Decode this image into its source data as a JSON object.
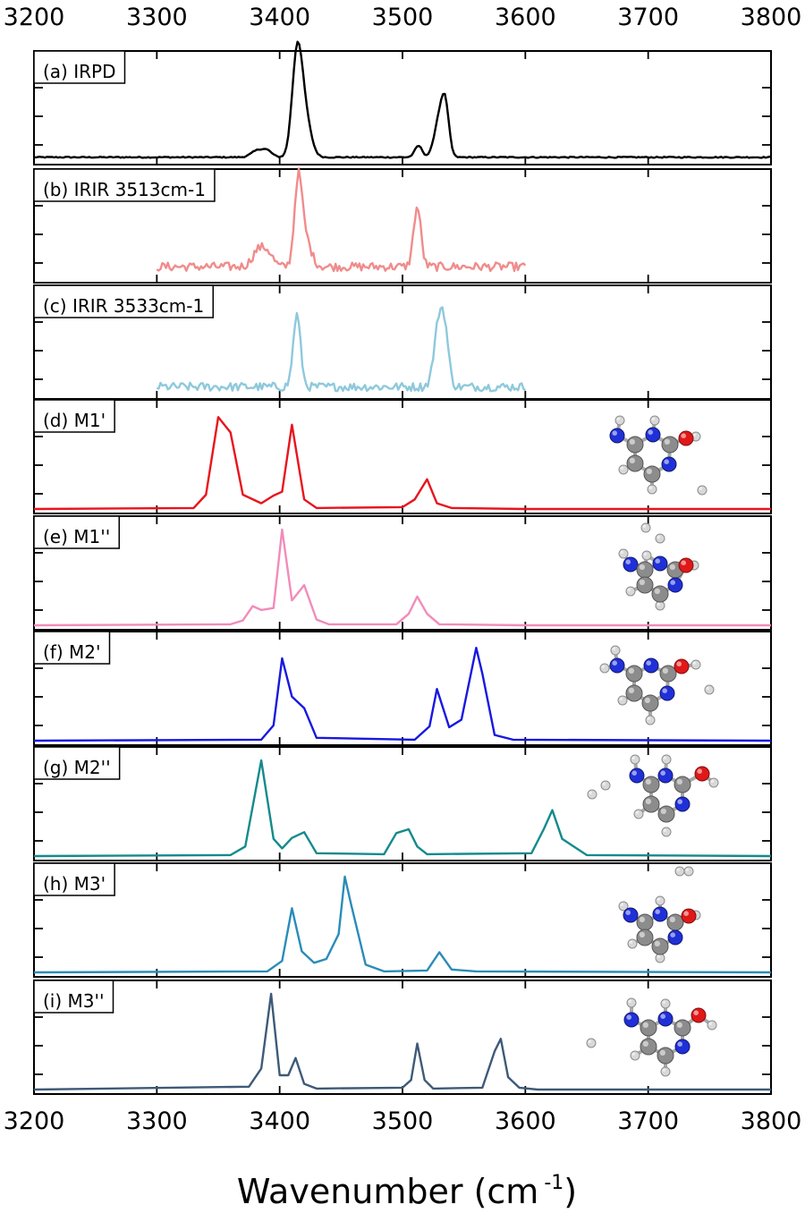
{
  "chart_data": {
    "type": "line",
    "xlabel": "Wavenumber (cm",
    "xlabel_superscript": "-1",
    "xlabel_close": ")",
    "xlim": [
      3200,
      3800
    ],
    "xticks": [
      3200,
      3300,
      3400,
      3500,
      3600,
      3700,
      3800
    ],
    "xtick_labels": [
      "3200",
      "3300",
      "3400",
      "3500",
      "3600",
      "3700",
      "3800"
    ],
    "grid": false,
    "panels": [
      {
        "label": "(a) IRPD",
        "color": "#000000",
        "kind": "measured",
        "range": [
          3200,
          3800
        ],
        "baseline": 0.03,
        "noise": 0.006,
        "peaks": [
          [
            3382,
            0.07,
            5
          ],
          [
            3390,
            0.06,
            4
          ],
          [
            3414,
            0.97,
            4
          ],
          [
            3420,
            0.45,
            5
          ],
          [
            3513,
            0.12,
            3
          ],
          [
            3530,
            0.4,
            4
          ],
          [
            3535,
            0.45,
            3
          ]
        ],
        "molecule": false
      },
      {
        "label": "(b) IRIR 3513cm-1",
        "color": "#f08c8c",
        "kind": "measured",
        "range": [
          3300,
          3600
        ],
        "baseline": 0.12,
        "noise": 0.045,
        "peaks": [
          [
            3383,
            0.18,
            5
          ],
          [
            3391,
            0.12,
            4
          ],
          [
            3415,
            0.78,
            3
          ],
          [
            3420,
            0.32,
            5
          ],
          [
            3512,
            0.62,
            3
          ]
        ],
        "molecule": false
      },
      {
        "label": "(c) IRIR 3533cm-1",
        "color": "#8ec9dc",
        "kind": "measured",
        "range": [
          3300,
          3600
        ],
        "baseline": 0.08,
        "noise": 0.045,
        "peaks": [
          [
            3414,
            0.75,
            3
          ],
          [
            3530,
            0.7,
            4
          ],
          [
            3535,
            0.35,
            3
          ]
        ],
        "molecule": false
      },
      {
        "label": "(d) M1'",
        "color": "#e8141e",
        "kind": "computed",
        "x": [
          3200,
          3330,
          3340,
          3350,
          3360,
          3370,
          3385,
          3395,
          3402,
          3410,
          3420,
          3430,
          3500,
          3510,
          3520,
          3528,
          3540,
          3600,
          3800
        ],
        "y": [
          0,
          0.01,
          0.15,
          0.96,
          0.8,
          0.15,
          0.06,
          0.14,
          0.18,
          0.88,
          0.1,
          0.01,
          0.02,
          0.1,
          0.31,
          0.06,
          0.01,
          0,
          0
        ],
        "molecule": true
      },
      {
        "label": "(e) M1''",
        "color": "#f28cba",
        "kind": "computed",
        "x": [
          3200,
          3360,
          3370,
          3378,
          3385,
          3395,
          3402,
          3410,
          3420,
          3430,
          3440,
          3495,
          3505,
          3512,
          3520,
          3530,
          3600,
          3800
        ],
        "y": [
          0,
          0.01,
          0.05,
          0.2,
          0.16,
          0.18,
          1.0,
          0.26,
          0.42,
          0.06,
          0.01,
          0.01,
          0.12,
          0.3,
          0.12,
          0.01,
          0,
          0
        ],
        "molecule": true
      },
      {
        "label": "(f) M2'",
        "color": "#1818e0",
        "kind": "computed",
        "x": [
          3200,
          3385,
          3395,
          3402,
          3410,
          3420,
          3430,
          3510,
          3522,
          3528,
          3538,
          3548,
          3560,
          3565,
          3575,
          3590,
          3800
        ],
        "y": [
          0,
          0.01,
          0.16,
          0.86,
          0.46,
          0.34,
          0.03,
          0.01,
          0.15,
          0.54,
          0.14,
          0.22,
          0.97,
          0.7,
          0.06,
          0.01,
          0
        ],
        "molecule": true
      },
      {
        "label": "(g) M2''",
        "color": "#138a8c",
        "kind": "computed",
        "x": [
          3200,
          3360,
          3372,
          3385,
          3395,
          3402,
          3410,
          3420,
          3430,
          3485,
          3495,
          3505,
          3512,
          3520,
          3605,
          3615,
          3622,
          3630,
          3650,
          3800
        ],
        "y": [
          0,
          0.01,
          0.1,
          1.0,
          0.18,
          0.08,
          0.19,
          0.25,
          0.03,
          0.02,
          0.24,
          0.28,
          0.1,
          0.02,
          0.03,
          0.28,
          0.48,
          0.18,
          0.01,
          0
        ],
        "molecule": true
      },
      {
        "label": "(h) M3'",
        "color": "#2a8cb8",
        "kind": "computed",
        "x": [
          3200,
          3390,
          3402,
          3410,
          3418,
          3428,
          3438,
          3448,
          3453,
          3458,
          3470,
          3485,
          3520,
          3530,
          3540,
          3560,
          3800
        ],
        "y": [
          0,
          0.01,
          0.12,
          0.67,
          0.22,
          0.1,
          0.14,
          0.4,
          1.0,
          0.72,
          0.08,
          0.01,
          0.02,
          0.21,
          0.03,
          0.01,
          0
        ],
        "molecule": true
      },
      {
        "label": "(i) M3''",
        "color": "#3e5a78",
        "kind": "computed",
        "x": [
          3200,
          3375,
          3385,
          3393,
          3400,
          3407,
          3413,
          3420,
          3430,
          3500,
          3507,
          3512,
          3518,
          3525,
          3565,
          3575,
          3580,
          3586,
          3595,
          3610,
          3800
        ],
        "y": [
          0,
          0.03,
          0.22,
          1.0,
          0.15,
          0.15,
          0.33,
          0.06,
          0.01,
          0.02,
          0.1,
          0.48,
          0.1,
          0.01,
          0.02,
          0.4,
          0.53,
          0.13,
          0.02,
          0,
          0
        ],
        "molecule": true
      }
    ]
  },
  "molecules": [
    {
      "panel": 3,
      "atoms": [
        [
          "N",
          690,
          487
        ],
        [
          "N",
          730,
          486
        ],
        [
          "C",
          710,
          497
        ],
        [
          "C",
          749,
          497
        ],
        [
          "O",
          767,
          490
        ],
        [
          "C",
          710,
          518
        ],
        [
          "N",
          748,
          519
        ],
        [
          "C",
          729,
          530
        ],
        [
          "H",
          693,
          470
        ],
        [
          "H",
          732,
          470
        ],
        [
          "H",
          778,
          488
        ],
        [
          "H",
          697,
          525
        ],
        [
          "H",
          729,
          547
        ],
        [
          "H",
          785,
          548
        ]
      ]
    },
    {
      "panel": 4,
      "atoms": [
        [
          "N",
          705,
          631
        ],
        [
          "N",
          738,
          630
        ],
        [
          "C",
          721,
          637
        ],
        [
          "C",
          755,
          637
        ],
        [
          "O",
          767,
          632
        ],
        [
          "C",
          721,
          654
        ],
        [
          "N",
          755,
          654
        ],
        [
          "C",
          738,
          664
        ],
        [
          "H",
          697,
          619
        ],
        [
          "H",
          723,
          621
        ],
        [
          "H",
          722,
          590
        ],
        [
          "H",
          776,
          632
        ],
        [
          "H",
          705,
          661
        ],
        [
          "H",
          738,
          677
        ],
        [
          "H",
          738,
          602
        ]
      ]
    },
    {
      "panel": 5,
      "atoms": [
        [
          "N",
          690,
          744
        ],
        [
          "N",
          728,
          744
        ],
        [
          "C",
          709,
          753
        ],
        [
          "C",
          747,
          753
        ],
        [
          "O",
          762,
          745
        ],
        [
          "C",
          709,
          775
        ],
        [
          "N",
          746,
          775
        ],
        [
          "C",
          727,
          786
        ],
        [
          "H",
          676,
          747
        ],
        [
          "H",
          688,
          727
        ],
        [
          "H",
          778,
          743
        ],
        [
          "H",
          696,
          783
        ],
        [
          "H",
          727,
          805
        ],
        [
          "H",
          793,
          771
        ]
      ]
    },
    {
      "panel": 6,
      "atoms": [
        [
          "N",
          712,
          867
        ],
        [
          "N",
          744,
          867
        ],
        [
          "C",
          728,
          877
        ],
        [
          "C",
          763,
          877
        ],
        [
          "O",
          785,
          865
        ],
        [
          "C",
          728,
          899
        ],
        [
          "N",
          763,
          899
        ],
        [
          "C",
          745,
          910
        ],
        [
          "H",
          710,
          849
        ],
        [
          "H",
          745,
          849
        ],
        [
          "H",
          798,
          875
        ],
        [
          "H",
          714,
          910
        ],
        [
          "H",
          745,
          930
        ],
        [
          "H",
          662,
          888
        ],
        [
          "H",
          677,
          878
        ]
      ]
    },
    {
      "panel": 7,
      "atoms": [
        [
          "N",
          705,
          1023
        ],
        [
          "N",
          738,
          1022
        ],
        [
          "C",
          721,
          1031
        ],
        [
          "C",
          755,
          1031
        ],
        [
          "O",
          770,
          1024
        ],
        [
          "C",
          721,
          1048
        ],
        [
          "N",
          755,
          1048
        ],
        [
          "C",
          738,
          1058
        ],
        [
          "H",
          697,
          1013
        ],
        [
          "H",
          738,
          1007
        ],
        [
          "H",
          778,
          1023
        ],
        [
          "H",
          707,
          1055
        ],
        [
          "H",
          738,
          1071
        ],
        [
          "H",
          760,
          974
        ],
        [
          "H",
          770,
          974
        ]
      ]
    },
    {
      "panel": 8,
      "atoms": [
        [
          "N",
          706,
          1140
        ],
        [
          "N",
          744,
          1139
        ],
        [
          "C",
          725,
          1149
        ],
        [
          "C",
          763,
          1149
        ],
        [
          "O",
          781,
          1135
        ],
        [
          "C",
          725,
          1170
        ],
        [
          "N",
          763,
          1170
        ],
        [
          "C",
          744,
          1180
        ],
        [
          "H",
          706,
          1121
        ],
        [
          "H",
          744,
          1122
        ],
        [
          "H",
          796,
          1146
        ],
        [
          "H",
          710,
          1180
        ],
        [
          "H",
          744,
          1198
        ],
        [
          "H",
          661,
          1166
        ]
      ]
    }
  ]
}
